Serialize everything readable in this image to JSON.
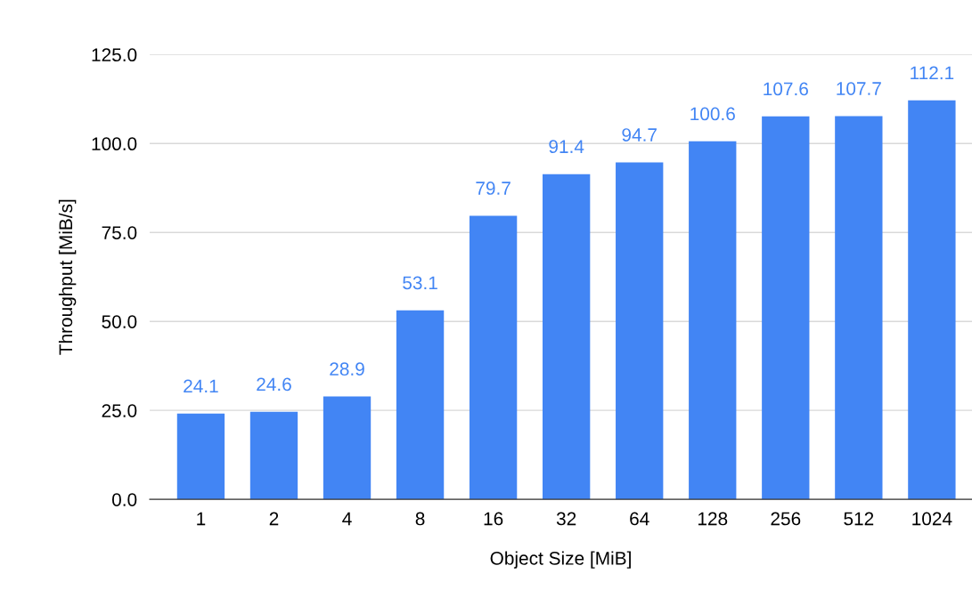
{
  "chart_data": {
    "type": "bar",
    "xlabel": "Object Size [MiB]",
    "ylabel": "Throughput [MiB/s]",
    "categories": [
      "1",
      "2",
      "4",
      "8",
      "16",
      "32",
      "64",
      "128",
      "256",
      "512",
      "1024"
    ],
    "values": [
      24.1,
      24.6,
      28.9,
      53.1,
      79.7,
      91.4,
      94.7,
      100.6,
      107.6,
      107.7,
      112.1
    ],
    "color": "#4285f4",
    "ylim": [
      0,
      125
    ],
    "yticks": [
      {
        "value": 0,
        "label": "0.0"
      },
      {
        "value": 25,
        "label": "25.0"
      },
      {
        "value": 50,
        "label": "50.0"
      },
      {
        "value": 75,
        "label": "75.0"
      },
      {
        "value": 100,
        "label": "100.0"
      },
      {
        "value": 125,
        "label": "125.0"
      }
    ],
    "grid": "y",
    "data_labels": true
  }
}
